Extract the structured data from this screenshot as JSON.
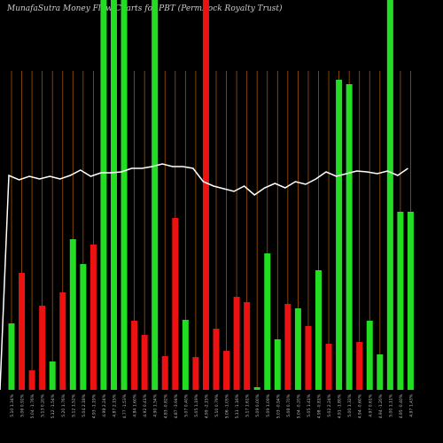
{
  "chart_data": {
    "type": "bar",
    "title": "MunafaSutra  Money Flow  Charts for PBT          (PermRock Royalty Trust)",
    "categories": [
      "5.10 1.34%",
      "5.06 0.92%",
      "5.04 -1.76%",
      "5.13 0.20%",
      "5.12 -1.54%",
      "5.20 1.76%",
      "5.12 1.52%",
      "5.04 2.18%",
      "4.93 -1.19%",
      "4.98 2.24%",
      "4.87 2.15%",
      "4.77 -1.53%",
      "4.84 1.60%",
      "4.92 0.41%",
      "4.90 1.54%",
      "4.83 -0.82%",
      "4.87 -3.94%",
      "5.07 0.40%",
      "5.05 1.19%",
      "4.99 -2.15%",
      "5.10 0.79%",
      "5.06 -1.05%",
      "5.11 -1.16%",
      "5.17 1.61%",
      "5.09 0.00%",
      "5.09 1.09%",
      "5.03 -0.94%",
      "5.08 0.70%",
      "5.04 -0.20%",
      "5.05 1.41%",
      "4.98 -0.81%",
      "5.02 2.24%",
      "4.91 -1.80%",
      "5.00 1.32%",
      "4.94 -0.60%",
      "4.97 0.61%",
      "4.94 -1.20%",
      "5.00 1.11%",
      "4.95 -0.40%",
      "4.97 1.43%"
    ],
    "values": [
      75,
      132,
      22,
      95,
      32,
      110,
      170,
      142,
      164,
      440,
      440,
      440,
      78,
      62,
      440,
      38,
      194,
      79,
      37,
      440,
      69,
      44,
      105,
      99,
      3,
      154,
      57,
      97,
      92,
      72,
      135,
      52,
      350,
      345,
      54,
      78,
      40,
      440,
      201,
      201
    ],
    "colors": [
      "#22dd22",
      "#ee1111",
      "#ee1111",
      "#ee1111",
      "#22dd22",
      "#ee1111",
      "#22dd22",
      "#22dd22",
      "#ee1111",
      "#22dd22",
      "#22dd22",
      "#22dd22",
      "#ee1111",
      "#ee1111",
      "#22dd22",
      "#ee1111",
      "#ee1111",
      "#22dd22",
      "#ee1111",
      "#ee1111",
      "#ee1111",
      "#ee1111",
      "#ee1111",
      "#ee1111",
      "#22dd22",
      "#22dd22",
      "#22dd22",
      "#ee1111",
      "#22dd22",
      "#ee1111",
      "#22dd22",
      "#ee1111",
      "#22dd22",
      "#22dd22",
      "#ee1111",
      "#22dd22",
      "#22dd22",
      "#22dd22",
      "#22dd22",
      "#22dd22"
    ],
    "line": {
      "color": "#ffffff",
      "values": [
        242,
        237,
        241,
        238,
        241,
        238,
        242,
        248,
        241,
        245,
        245,
        246,
        250,
        250,
        252,
        255,
        252,
        252,
        250,
        235,
        230,
        227,
        224,
        230,
        220,
        228,
        233,
        228,
        235,
        232,
        238,
        246,
        241,
        244,
        247,
        246,
        244,
        247,
        242,
        250
      ]
    },
    "ylim": [
      0,
      440
    ]
  }
}
